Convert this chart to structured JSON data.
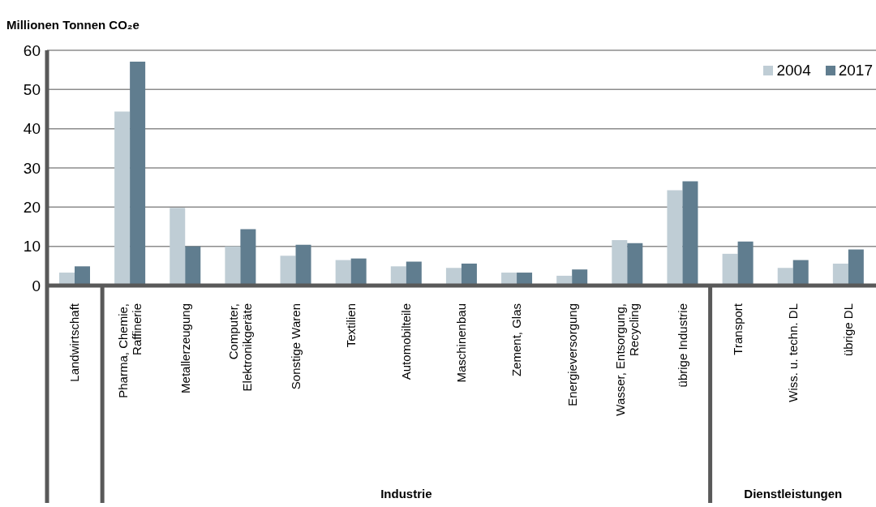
{
  "chart_data": {
    "type": "bar",
    "ylabel": "Millionen Tonnen CO₂e",
    "categories": [
      "Landwirtschaft",
      "Pharma, Chemie, Raffinerie",
      "Metallerzeugung",
      "Computer, Elektronikgeräte",
      "Sonstige Waren",
      "Textilien",
      "Automobilteile",
      "Maschinenbau",
      "Zement, Glas",
      "Energieversorgung",
      "Wasser, Entsorgung, Recycling",
      "übrige Industrie",
      "Transport",
      "Wiss. u. techn. DL",
      "übrige DL"
    ],
    "series": [
      {
        "name": "2004",
        "color": "#bfcdd5",
        "values": [
          3.3,
          44.4,
          19.8,
          10.0,
          7.6,
          6.5,
          4.9,
          4.5,
          3.3,
          2.5,
          11.6,
          24.3,
          8.1,
          4.5,
          5.6
        ]
      },
      {
        "name": "2017",
        "color": "#607d8f",
        "values": [
          4.9,
          57.1,
          10.0,
          14.4,
          10.4,
          6.9,
          6.1,
          5.6,
          3.3,
          4.1,
          10.8,
          26.6,
          11.2,
          6.5,
          9.2
        ]
      }
    ],
    "ylim": [
      0,
      60
    ],
    "yticks": [
      0,
      10,
      20,
      30,
      40,
      50,
      60
    ],
    "grid": "y",
    "legend": "top right",
    "annotations": [
      "Industrie",
      "Dienstleistungen"
    ]
  }
}
